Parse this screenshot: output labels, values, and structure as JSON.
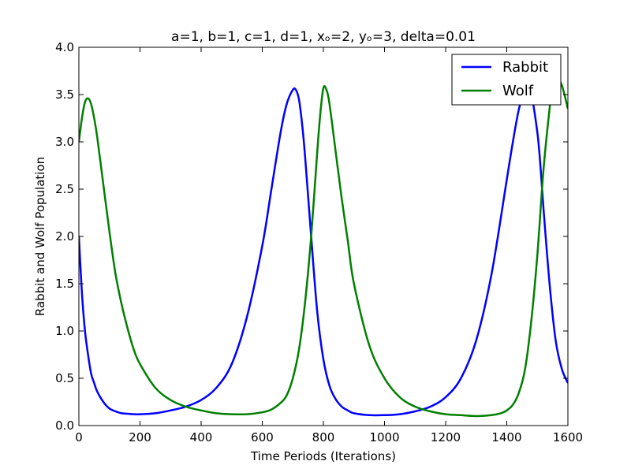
{
  "chart_data": {
    "type": "line",
    "title": "a=1, b=1, c=1, d=1, xₒ=2, yₒ=3, delta=0.01",
    "xlabel": "Time Periods (Iterations)",
    "ylabel": "Rabbit and Wolf Population",
    "xlim": [
      0,
      1600
    ],
    "ylim": [
      0,
      4.0
    ],
    "x_ticks": [
      0,
      200,
      400,
      600,
      800,
      1000,
      1200,
      1400,
      1600
    ],
    "x_tick_labels": [
      "0",
      "200",
      "400",
      "600",
      "800",
      "1000",
      "1200",
      "1400",
      "1600"
    ],
    "y_ticks": [
      0,
      0.5,
      1.0,
      1.5,
      2.0,
      2.5,
      3.0,
      3.5,
      4.0
    ],
    "y_tick_labels": [
      "0.0",
      "0.5",
      "1.0",
      "1.5",
      "2.0",
      "2.5",
      "3.0",
      "3.5",
      "4.0"
    ],
    "grid": false,
    "legend_position": "top-right",
    "series": [
      {
        "name": "Rabbit",
        "color": "#0000ff",
        "x": [
          0,
          10,
          20,
          30,
          40,
          50,
          60,
          80,
          100,
          120,
          140,
          160,
          180,
          200,
          250,
          300,
          350,
          400,
          450,
          500,
          550,
          600,
          630,
          660,
          680,
          700,
          710,
          720,
          730,
          740,
          760,
          780,
          800,
          820,
          840,
          860,
          880,
          900,
          950,
          1000,
          1050,
          1100,
          1150,
          1200,
          1250,
          1300,
          1350,
          1400,
          1420,
          1440,
          1460,
          1480,
          1500,
          1510,
          1520,
          1540,
          1560,
          1580,
          1600
        ],
        "y": [
          2.0,
          1.4,
          1.0,
          0.75,
          0.55,
          0.45,
          0.36,
          0.25,
          0.18,
          0.15,
          0.13,
          0.125,
          0.12,
          0.12,
          0.13,
          0.16,
          0.2,
          0.27,
          0.4,
          0.65,
          1.15,
          1.9,
          2.5,
          3.1,
          3.4,
          3.55,
          3.55,
          3.45,
          3.2,
          2.85,
          2.0,
          1.2,
          0.7,
          0.42,
          0.28,
          0.2,
          0.16,
          0.13,
          0.11,
          0.11,
          0.12,
          0.15,
          0.2,
          0.3,
          0.5,
          0.9,
          1.6,
          2.6,
          3.0,
          3.35,
          3.55,
          3.5,
          3.1,
          2.75,
          2.3,
          1.5,
          0.9,
          0.6,
          0.45
        ]
      },
      {
        "name": "Wolf",
        "color": "#008000",
        "x": [
          0,
          10,
          20,
          30,
          40,
          50,
          60,
          80,
          100,
          120,
          140,
          160,
          180,
          200,
          250,
          300,
          350,
          400,
          450,
          500,
          550,
          600,
          630,
          660,
          680,
          700,
          720,
          740,
          760,
          780,
          790,
          800,
          810,
          820,
          840,
          860,
          880,
          900,
          950,
          1000,
          1050,
          1100,
          1150,
          1200,
          1250,
          1300,
          1350,
          1380,
          1400,
          1420,
          1440,
          1460,
          1480,
          1500,
          1520,
          1540,
          1550,
          1560,
          1580,
          1600
        ],
        "y": [
          3.0,
          3.25,
          3.42,
          3.46,
          3.4,
          3.25,
          3.05,
          2.55,
          2.05,
          1.6,
          1.28,
          1.02,
          0.8,
          0.65,
          0.4,
          0.27,
          0.2,
          0.16,
          0.13,
          0.12,
          0.12,
          0.14,
          0.17,
          0.24,
          0.32,
          0.5,
          0.8,
          1.3,
          2.0,
          2.9,
          3.3,
          3.57,
          3.55,
          3.4,
          2.9,
          2.4,
          1.95,
          1.5,
          0.85,
          0.5,
          0.3,
          0.2,
          0.15,
          0.12,
          0.11,
          0.1,
          0.11,
          0.13,
          0.16,
          0.22,
          0.35,
          0.6,
          1.1,
          1.8,
          2.7,
          3.35,
          3.6,
          3.7,
          3.6,
          3.35
        ]
      }
    ]
  }
}
